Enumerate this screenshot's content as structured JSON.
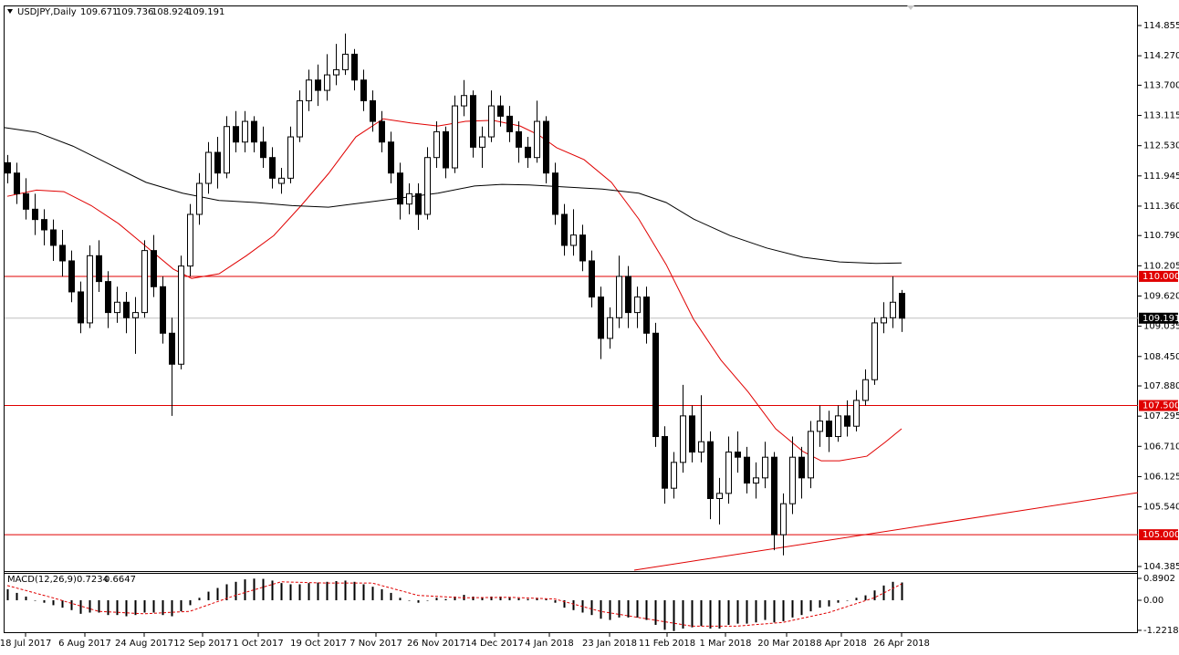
{
  "chart_data": [
    {
      "type": "candlestick",
      "title": "USDJPY,Daily",
      "header_values": [
        109.671,
        109.736,
        108.924,
        109.191
      ],
      "xlim": [
        -0.3,
        123.9
      ],
      "ylim": [
        104.314,
        115.208
      ],
      "yticks": [
        114.855,
        {
          "value": 114.27,
          "label": "114.270"
        },
        {
          "value": 113.7,
          "label": "113.700"
        },
        113.115,
        {
          "value": 112.53,
          "label": "112.530"
        },
        111.945,
        {
          "value": 111.36,
          "label": "111.360"
        },
        {
          "value": 110.79,
          "label": "110.790"
        },
        110.205,
        {
          "value": 109.62,
          "label": "109.620"
        },
        109.035,
        {
          "value": 108.45,
          "label": "108.450"
        },
        {
          "value": 107.88,
          "label": "107.880"
        },
        107.295,
        {
          "value": 106.71,
          "label": "106.710"
        },
        106.125,
        {
          "value": 105.54,
          "label": "105.540"
        },
        104.385
      ],
      "xticks": [
        {
          "value": 2,
          "label": "18 Jul 2017"
        },
        {
          "value": 8.5,
          "label": "6 Aug 2017"
        },
        {
          "value": 15,
          "label": "24 Aug 2017"
        },
        {
          "value": 21.4,
          "label": "12 Sep 2017"
        },
        {
          "value": 27.5,
          "label": "1 Oct 2017"
        },
        {
          "value": 34.1,
          "label": "19 Oct 2017"
        },
        {
          "value": 40.4,
          "label": "7 Nov 2017"
        },
        {
          "value": 47,
          "label": "26 Nov 2017"
        },
        {
          "value": 53.4,
          "label": "14 Dec 2017"
        },
        {
          "value": 59.4,
          "label": "4 Jan 2018"
        },
        {
          "value": 66,
          "label": "23 Jan 2018"
        },
        {
          "value": 72.3,
          "label": "11 Feb 2018"
        },
        {
          "value": 78.7,
          "label": "1 Mar 2018"
        },
        {
          "value": 85.4,
          "label": "20 Mar 2018"
        },
        {
          "value": 91.4,
          "label": "8 Apr 2018"
        },
        {
          "value": 98,
          "label": "26 Apr 2018"
        }
      ],
      "candles": [
        [
          112.2,
          112.35,
          111.8,
          112.0
        ],
        [
          112.0,
          112.2,
          111.4,
          111.6
        ],
        [
          111.6,
          111.9,
          111.1,
          111.3
        ],
        [
          111.3,
          111.6,
          110.8,
          111.1
        ],
        [
          111.1,
          111.3,
          110.6,
          110.9
        ],
        [
          110.9,
          111.1,
          110.3,
          110.6
        ],
        [
          110.6,
          110.9,
          110.0,
          110.3
        ],
        [
          110.3,
          110.5,
          109.5,
          109.7
        ],
        [
          109.7,
          109.9,
          108.9,
          109.1
        ],
        [
          109.1,
          110.6,
          109.0,
          110.4
        ],
        [
          110.4,
          110.7,
          109.7,
          109.9
        ],
        [
          109.9,
          110.1,
          109.0,
          109.3
        ],
        [
          109.3,
          109.8,
          109.1,
          109.5
        ],
        [
          109.5,
          109.7,
          108.9,
          109.2
        ],
        [
          109.2,
          109.6,
          108.5,
          109.3
        ],
        [
          109.3,
          110.7,
          109.2,
          110.5
        ],
        [
          110.5,
          110.8,
          109.6,
          109.8
        ],
        [
          109.8,
          110.0,
          108.7,
          108.9
        ],
        [
          108.9,
          109.2,
          107.3,
          108.3
        ],
        [
          108.3,
          110.4,
          108.2,
          110.2
        ],
        [
          110.2,
          111.4,
          110.0,
          111.2
        ],
        [
          111.2,
          112.0,
          111.0,
          111.8
        ],
        [
          111.8,
          112.6,
          111.6,
          112.4
        ],
        [
          112.4,
          112.7,
          111.7,
          112.0
        ],
        [
          112.0,
          113.1,
          111.9,
          112.9
        ],
        [
          112.9,
          113.2,
          112.4,
          112.6
        ],
        [
          112.6,
          113.2,
          112.4,
          113.0
        ],
        [
          113.0,
          113.1,
          112.4,
          112.6
        ],
        [
          112.6,
          112.9,
          112.1,
          112.3
        ],
        [
          112.3,
          112.5,
          111.7,
          111.9
        ],
        [
          111.8,
          112.1,
          111.6,
          111.9
        ],
        [
          111.9,
          112.9,
          111.8,
          112.7
        ],
        [
          112.7,
          113.6,
          112.6,
          113.4
        ],
        [
          113.4,
          114.0,
          113.2,
          113.8
        ],
        [
          113.8,
          114.1,
          113.3,
          113.6
        ],
        [
          113.6,
          114.3,
          113.4,
          113.9
        ],
        [
          113.9,
          114.5,
          113.7,
          114.0
        ],
        [
          114.0,
          114.7,
          113.9,
          114.3
        ],
        [
          114.3,
          114.4,
          113.6,
          113.8
        ],
        [
          113.8,
          114.0,
          113.2,
          113.4
        ],
        [
          113.4,
          113.6,
          112.8,
          113.0
        ],
        [
          113.0,
          113.2,
          112.4,
          112.6
        ],
        [
          112.6,
          112.8,
          111.8,
          112.0
        ],
        [
          112.0,
          112.2,
          111.1,
          111.4
        ],
        [
          111.4,
          111.8,
          111.2,
          111.6
        ],
        [
          111.6,
          111.8,
          110.9,
          111.2
        ],
        [
          111.2,
          112.5,
          111.1,
          112.3
        ],
        [
          112.3,
          113.0,
          112.1,
          112.8
        ],
        [
          112.8,
          112.9,
          111.9,
          112.1
        ],
        [
          112.1,
          113.5,
          112.0,
          113.3
        ],
        [
          113.3,
          113.8,
          113.1,
          113.5
        ],
        [
          113.5,
          113.6,
          112.3,
          112.5
        ],
        [
          112.5,
          112.9,
          112.1,
          112.7
        ],
        [
          112.7,
          113.6,
          112.6,
          113.3
        ],
        [
          113.3,
          113.5,
          112.9,
          113.1
        ],
        [
          113.1,
          113.3,
          112.6,
          112.8
        ],
        [
          112.8,
          113.0,
          112.2,
          112.5
        ],
        [
          112.5,
          112.7,
          112.1,
          112.3
        ],
        [
          112.3,
          113.4,
          112.2,
          113.0
        ],
        [
          113.0,
          113.1,
          111.8,
          112.0
        ],
        [
          112.0,
          112.2,
          111.0,
          111.2
        ],
        [
          111.2,
          111.4,
          110.4,
          110.6
        ],
        [
          110.6,
          111.3,
          110.4,
          110.8
        ],
        [
          110.8,
          111.0,
          110.1,
          110.3
        ],
        [
          110.3,
          110.5,
          109.4,
          109.6
        ],
        [
          109.6,
          109.8,
          108.4,
          108.8
        ],
        [
          108.8,
          109.4,
          108.6,
          109.2
        ],
        [
          109.2,
          110.4,
          109.0,
          110.0
        ],
        [
          110.0,
          110.2,
          109.0,
          109.3
        ],
        [
          109.3,
          109.8,
          109.0,
          109.6
        ],
        [
          109.6,
          109.8,
          108.7,
          108.9
        ],
        [
          108.9,
          109.1,
          106.7,
          106.9
        ],
        [
          106.9,
          107.1,
          105.6,
          105.9
        ],
        [
          105.9,
          106.6,
          105.7,
          106.4
        ],
        [
          106.4,
          107.9,
          106.2,
          107.3
        ],
        [
          107.3,
          107.5,
          106.4,
          106.6
        ],
        [
          106.6,
          107.7,
          106.4,
          106.8
        ],
        [
          106.8,
          107.0,
          105.3,
          105.7
        ],
        [
          105.7,
          106.1,
          105.2,
          105.8
        ],
        [
          105.8,
          106.9,
          105.6,
          106.6
        ],
        [
          106.6,
          107.0,
          106.2,
          106.5
        ],
        [
          106.5,
          106.7,
          105.8,
          106.0
        ],
        [
          106.0,
          106.4,
          105.7,
          106.1
        ],
        [
          106.1,
          106.8,
          105.9,
          106.5
        ],
        [
          106.5,
          106.6,
          104.7,
          105.0
        ],
        [
          105.0,
          105.8,
          104.6,
          105.6
        ],
        [
          105.6,
          106.9,
          105.4,
          106.5
        ],
        [
          106.5,
          106.7,
          105.7,
          106.1
        ],
        [
          106.1,
          107.2,
          105.9,
          107.0
        ],
        [
          107.0,
          107.5,
          106.7,
          107.2
        ],
        [
          107.2,
          107.4,
          106.6,
          106.9
        ],
        [
          106.9,
          107.5,
          106.8,
          107.3
        ],
        [
          107.3,
          107.6,
          106.9,
          107.1
        ],
        [
          107.1,
          107.8,
          107.0,
          107.6
        ],
        [
          107.6,
          108.2,
          107.5,
          108.0
        ],
        [
          108.0,
          109.2,
          107.9,
          109.1
        ],
        [
          109.1,
          109.5,
          108.9,
          109.2
        ],
        [
          109.2,
          110.0,
          109.0,
          109.5
        ],
        [
          109.671,
          109.736,
          108.924,
          109.191
        ]
      ],
      "candle_color": "#000000",
      "overlays": [
        {
          "color": "#e00000",
          "x": [
            0,
            3.2,
            6.2,
            9.2,
            12.2,
            15.2,
            18.2,
            20.2,
            23.2,
            26.2,
            29.2,
            32.2,
            35.2,
            38.2,
            41.2,
            44.2,
            47.2,
            50.2,
            53.2,
            56.2,
            58.2,
            60.2,
            63.2,
            66.2,
            69.2,
            72.2,
            75.2,
            78.2,
            81.2,
            84.2,
            87.2,
            89.2,
            91.2,
            94.2,
            96.2,
            98
          ],
          "values": [
            111.55,
            111.67,
            111.64,
            111.37,
            111.02,
            110.58,
            110.14,
            109.96,
            110.05,
            110.4,
            110.79,
            111.37,
            111.99,
            112.7,
            113.05,
            112.97,
            112.91,
            113.0,
            113.02,
            112.91,
            112.74,
            112.49,
            112.26,
            111.82,
            111.11,
            110.23,
            109.17,
            108.38,
            107.76,
            107.05,
            106.61,
            106.43,
            106.43,
            106.52,
            106.79,
            107.05
          ]
        },
        {
          "color": "#000000",
          "x": [
            -0.3,
            3.2,
            7.2,
            11.2,
            15.2,
            19.2,
            23.2,
            27.2,
            31.2,
            35.2,
            39.2,
            43.2,
            47.2,
            51.2,
            54.2,
            57.2,
            61.2,
            65.2,
            69.2,
            72.2,
            75.2,
            79.2,
            83.2,
            87.2,
            91.2,
            95.2,
            98
          ],
          "values": [
            112.88,
            112.79,
            112.52,
            112.17,
            111.82,
            111.61,
            111.47,
            111.43,
            111.37,
            111.34,
            111.43,
            111.52,
            111.61,
            111.75,
            111.78,
            111.77,
            111.73,
            111.69,
            111.61,
            111.43,
            111.11,
            110.79,
            110.55,
            110.37,
            110.28,
            110.25,
            110.26
          ]
        },
        {
          "color": "#e00000",
          "x": [
            68.7,
            123.9
          ],
          "values": [
            104.314,
            105.815
          ]
        }
      ],
      "levels": [
        {
          "value": 110,
          "label": "110.000"
        },
        {
          "value": 107.5,
          "label": "107.500"
        },
        {
          "value": 105,
          "label": "105.000"
        }
      ],
      "level_color": "#e00000",
      "last_price": 109.191,
      "last_price_color": "#c0c0c0"
    },
    {
      "type": "macd",
      "title": "MACD(12,26,9)",
      "header_values": [
        0.7234,
        0.6647
      ],
      "ylim": [
        -1.298,
        1.076
      ],
      "yticks": [
        0.8902,
        {
          "value": 0,
          "label": "0.00"
        },
        -1.2218
      ],
      "histogram": [
        0.45,
        0.3,
        0.15,
        0.0,
        -0.1,
        -0.2,
        -0.3,
        -0.4,
        -0.55,
        -0.5,
        -0.5,
        -0.6,
        -0.6,
        -0.65,
        -0.6,
        -0.5,
        -0.5,
        -0.6,
        -0.65,
        -0.45,
        -0.2,
        0.1,
        0.35,
        0.5,
        0.65,
        0.75,
        0.85,
        0.88,
        0.87,
        0.8,
        0.7,
        0.65,
        0.65,
        0.7,
        0.72,
        0.75,
        0.78,
        0.8,
        0.75,
        0.65,
        0.55,
        0.45,
        0.3,
        0.1,
        0.0,
        -0.1,
        0.0,
        0.1,
        0.05,
        0.15,
        0.22,
        0.15,
        0.12,
        0.15,
        0.15,
        0.12,
        0.08,
        0.05,
        0.1,
        0.05,
        -0.1,
        -0.3,
        -0.4,
        -0.5,
        -0.6,
        -0.75,
        -0.8,
        -0.7,
        -0.7,
        -0.7,
        -0.8,
        -1.0,
        -1.2,
        -1.25,
        -1.15,
        -1.1,
        -1.05,
        -1.15,
        -1.15,
        -1.0,
        -0.95,
        -0.95,
        -0.9,
        -0.8,
        -0.9,
        -0.85,
        -0.7,
        -0.6,
        -0.45,
        -0.3,
        -0.25,
        -0.1,
        0.0,
        0.1,
        0.2,
        0.4,
        0.6,
        0.75,
        0.7234
      ],
      "histogram_color": "#000000",
      "signal": {
        "color": "#e00000",
        "x": [
          0,
          5,
          10,
          15,
          20,
          25,
          30,
          35,
          40,
          45,
          50,
          55,
          60,
          65,
          70,
          75,
          80,
          85,
          90,
          95,
          98
        ],
        "values": [
          0.6,
          0.1,
          -0.45,
          -0.55,
          -0.45,
          0.2,
          0.75,
          0.7,
          0.7,
          0.2,
          0.1,
          0.12,
          0.05,
          -0.45,
          -0.75,
          -1.05,
          -1.05,
          -0.9,
          -0.5,
          0.1,
          0.6647
        ]
      }
    }
  ]
}
